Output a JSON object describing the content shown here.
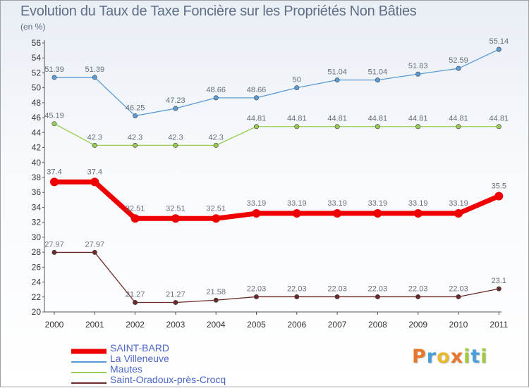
{
  "chart_data": {
    "type": "line",
    "title": "Evolution du Taux de Taxe Foncière sur les Propriétés Non Bâties",
    "subtitle": "(en %)",
    "x": [
      "2000",
      "2001",
      "2002",
      "2003",
      "2004",
      "2005",
      "2006",
      "2007",
      "2008",
      "2009",
      "2010",
      "2011"
    ],
    "ylim": [
      20,
      56
    ],
    "yticks": [
      20,
      22,
      24,
      26,
      28,
      30,
      32,
      34,
      36,
      38,
      40,
      42,
      44,
      46,
      48,
      50,
      52,
      54,
      56
    ],
    "grid": false,
    "legend_position": "bottom-left",
    "series": [
      {
        "name": "SAINT-BARD",
        "color": "#ee0000",
        "emphasis": true,
        "values": [
          37.4,
          37.4,
          32.51,
          32.51,
          32.51,
          33.19,
          33.19,
          33.19,
          33.19,
          33.19,
          33.19,
          35.5
        ],
        "labels": [
          "37.4",
          "37.4",
          "32.51",
          "32.51",
          "32.51",
          "33.19",
          "33.19",
          "33.19",
          "33.19",
          "33.19",
          "33.19",
          "35.5"
        ]
      },
      {
        "name": "La Villeneuve",
        "color": "#5b9bd5",
        "emphasis": false,
        "values": [
          51.39,
          51.39,
          46.25,
          47.23,
          48.66,
          48.66,
          50,
          51.04,
          51.04,
          51.83,
          52.59,
          55.14
        ],
        "labels": [
          "51.39",
          "51.39",
          "46.25",
          "47.23",
          "48.66",
          "48.66",
          "50",
          "51.04",
          "51.04",
          "51.83",
          "52.59",
          "55.14"
        ]
      },
      {
        "name": "Mautes",
        "color": "#99cc55",
        "emphasis": false,
        "values": [
          45.19,
          42.3,
          42.3,
          42.3,
          42.3,
          44.81,
          44.81,
          44.81,
          44.81,
          44.81,
          44.81,
          44.81
        ],
        "labels": [
          "45.19",
          "42.3",
          "42.3",
          "42.3",
          "42.3",
          "44.81",
          "44.81",
          "44.81",
          "44.81",
          "44.81",
          "44.81",
          "44.81"
        ]
      },
      {
        "name": "Saint-Oradoux-près-Crocq",
        "color": "#6b2a2a",
        "emphasis": false,
        "values": [
          27.97,
          27.97,
          21.27,
          21.27,
          21.58,
          22.03,
          22.03,
          22.03,
          22.03,
          22.03,
          22.03,
          23.1
        ],
        "labels": [
          "27.97",
          "27.97",
          "21.27",
          "21.27",
          "21.58",
          "22.03",
          "22.03",
          "22.03",
          "22.03",
          "22.03",
          "22.03",
          "23.1"
        ]
      }
    ]
  },
  "logo": {
    "text": "Proxiti",
    "letters": [
      {
        "ch": "P",
        "color": "#e8772e"
      },
      {
        "ch": "r",
        "color": "#4b9fd8"
      },
      {
        "ch": "o",
        "color": "#e8b92e"
      },
      {
        "ch": "x",
        "color": "#e8772e"
      },
      {
        "ch": "i",
        "color": "#9fca3c"
      },
      {
        "ch": "t",
        "color": "#4b9fd8"
      },
      {
        "ch": "i",
        "color": "#9fca3c"
      }
    ]
  }
}
